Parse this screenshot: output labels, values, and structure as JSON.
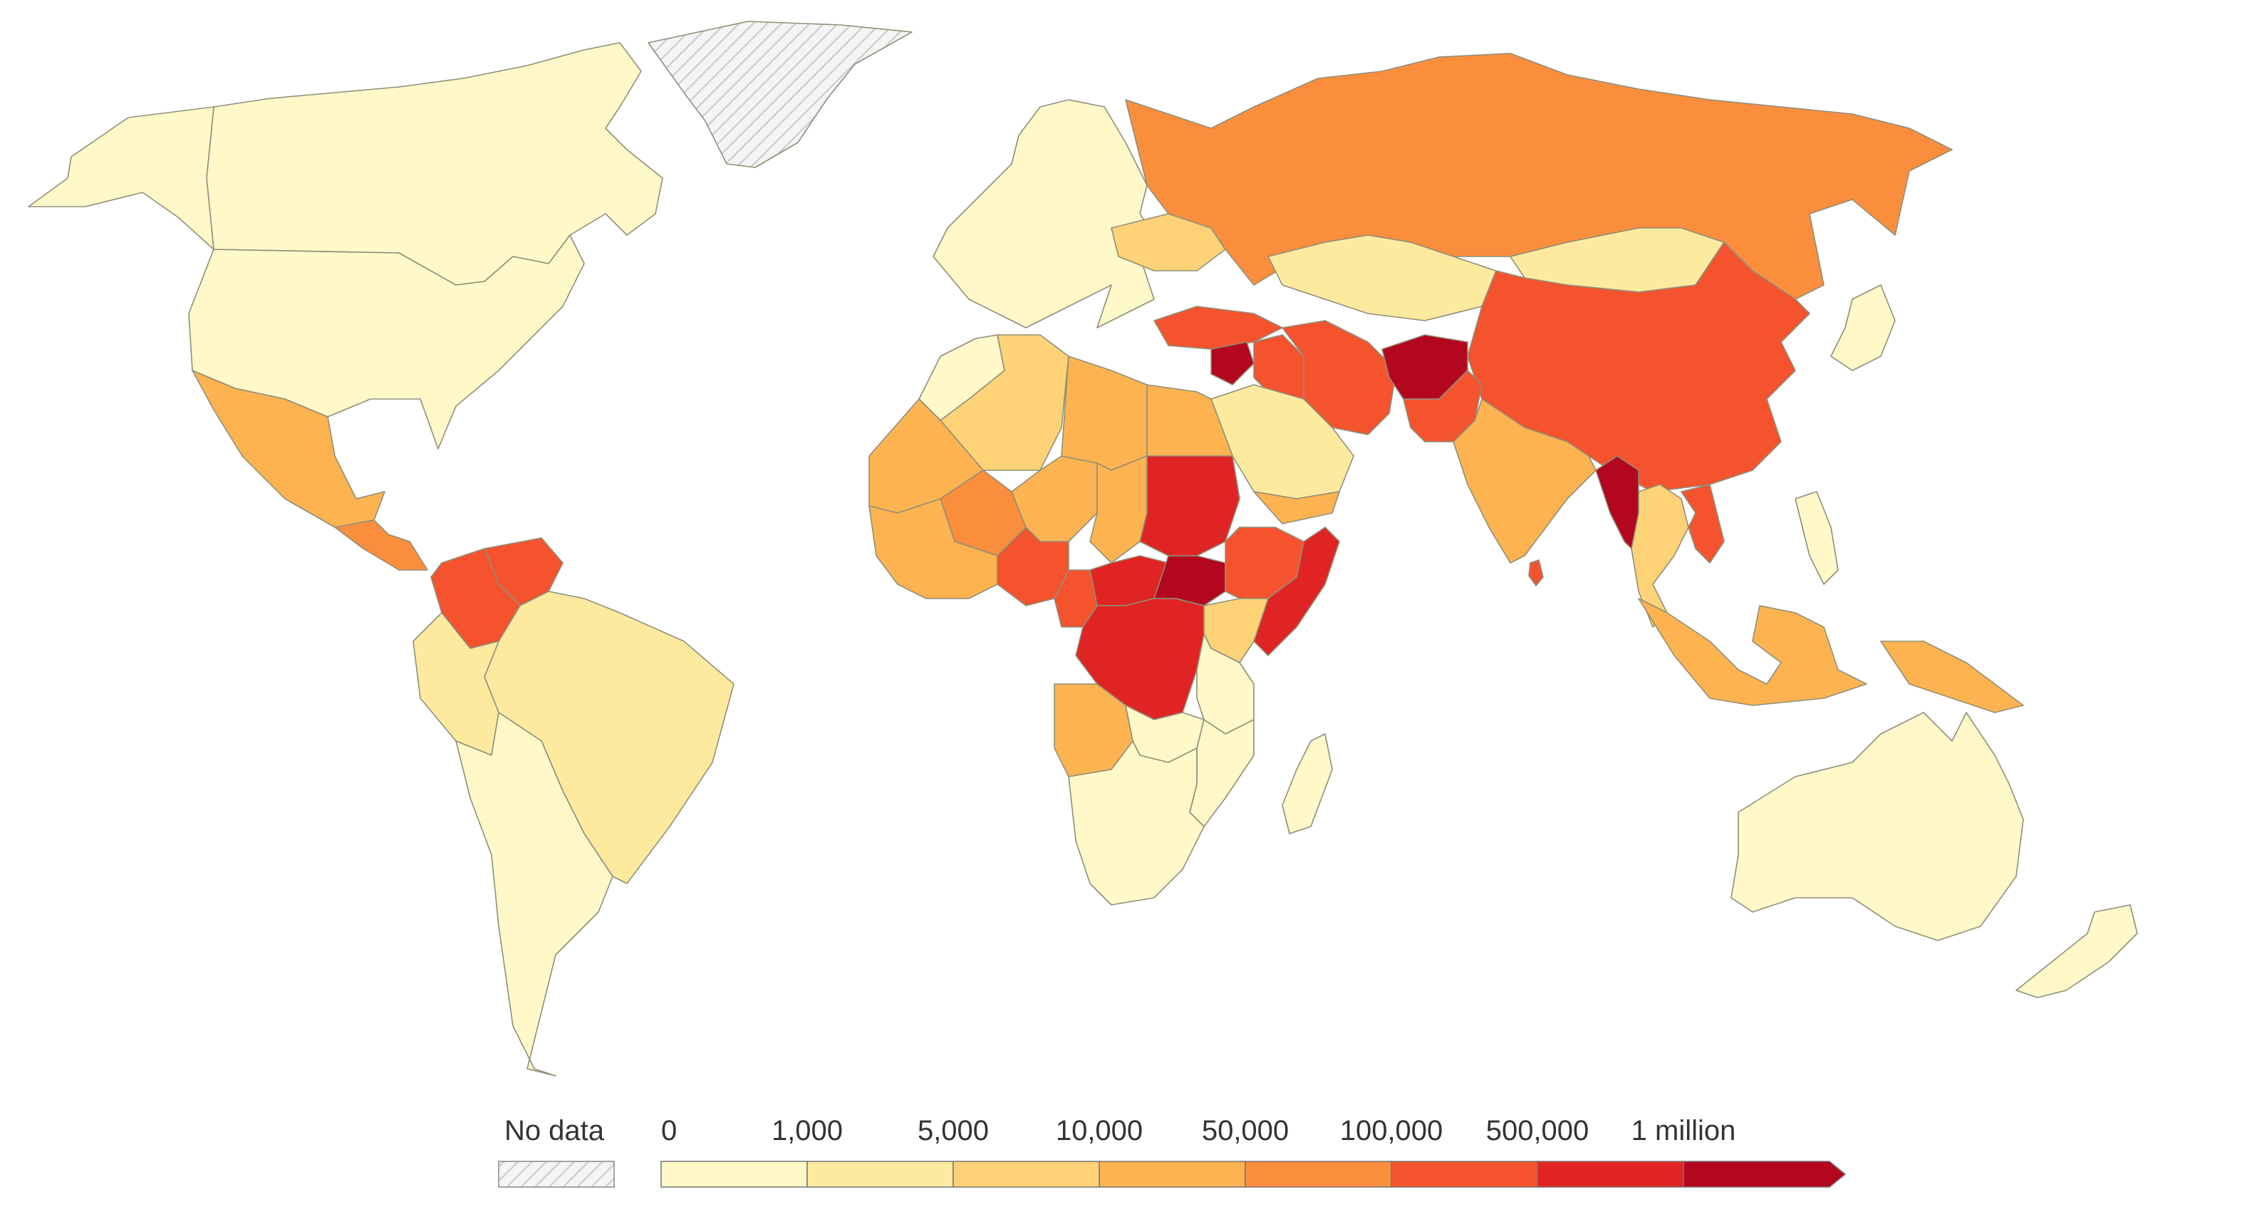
{
  "legend": {
    "no_data_label": "No data",
    "no_data_color": "#e9e9e9",
    "bins": [
      {
        "label": "0",
        "color": "#fff8c8"
      },
      {
        "label": "1,000",
        "color": "#feea9f"
      },
      {
        "label": "5,000",
        "color": "#fed276"
      },
      {
        "label": "10,000",
        "color": "#fdb350"
      },
      {
        "label": "50,000",
        "color": "#fb8e3c"
      },
      {
        "label": "100,000",
        "color": "#f4532d"
      },
      {
        "label": "500,000",
        "color": "#e02423"
      },
      {
        "label": "1 million",
        "color": "#b3061f"
      }
    ]
  },
  "regions": [
    {
      "name": "Canada",
      "color": "#fff8c8"
    },
    {
      "name": "United States",
      "color": "#fff8c8"
    },
    {
      "name": "Alaska",
      "color": "#fff8c8"
    },
    {
      "name": "Greenland",
      "color": "#e9e9e9"
    },
    {
      "name": "Mexico",
      "color": "#fdb350"
    },
    {
      "name": "Central America",
      "color": "#fb8e3c"
    },
    {
      "name": "Colombia",
      "color": "#f4532d"
    },
    {
      "name": "Venezuela",
      "color": "#f4532d"
    },
    {
      "name": "Brazil",
      "color": "#feea9f"
    },
    {
      "name": "Peru",
      "color": "#feea9f"
    },
    {
      "name": "Southern Cone",
      "color": "#fff8c8"
    },
    {
      "name": "Europe",
      "color": "#fff8c8"
    },
    {
      "name": "Ukraine",
      "color": "#fed276"
    },
    {
      "name": "Russia",
      "color": "#fb8e3c"
    },
    {
      "name": "Kazakhstan",
      "color": "#feea9f"
    },
    {
      "name": "Mongolia",
      "color": "#feea9f"
    },
    {
      "name": "China",
      "color": "#f4532d"
    },
    {
      "name": "Japan",
      "color": "#fff8c8"
    },
    {
      "name": "Turkey",
      "color": "#f4532d"
    },
    {
      "name": "Syria",
      "color": "#b3061f"
    },
    {
      "name": "Iraq",
      "color": "#f4532d"
    },
    {
      "name": "Iran",
      "color": "#f4532d"
    },
    {
      "name": "Afghanistan",
      "color": "#b3061f"
    },
    {
      "name": "Pakistan",
      "color": "#f4532d"
    },
    {
      "name": "India",
      "color": "#fdb350"
    },
    {
      "name": "Sri Lanka",
      "color": "#f4532d"
    },
    {
      "name": "Saudi Arabia",
      "color": "#feea9f"
    },
    {
      "name": "Yemen",
      "color": "#fdb350"
    },
    {
      "name": "Myanmar",
      "color": "#b3061f"
    },
    {
      "name": "Vietnam",
      "color": "#f4532d"
    },
    {
      "name": "Southeast Asia",
      "color": "#fed276"
    },
    {
      "name": "Indonesia",
      "color": "#fdb350"
    },
    {
      "name": "Philippines",
      "color": "#fff8c8"
    },
    {
      "name": "Papua New Guinea",
      "color": "#fdb350"
    },
    {
      "name": "Australia",
      "color": "#fff8c8"
    },
    {
      "name": "New Zealand",
      "color": "#fff8c8"
    },
    {
      "name": "Morocco",
      "color": "#fff8c8"
    },
    {
      "name": "Algeria",
      "color": "#fed276"
    },
    {
      "name": "Libya",
      "color": "#fdb350"
    },
    {
      "name": "Egypt",
      "color": "#fdb350"
    },
    {
      "name": "Mauritania",
      "color": "#fdb350"
    },
    {
      "name": "Mali",
      "color": "#fb8e3c"
    },
    {
      "name": "Niger",
      "color": "#fdb350"
    },
    {
      "name": "Chad",
      "color": "#fdb350"
    },
    {
      "name": "Sudan",
      "color": "#e02423"
    },
    {
      "name": "West Africa",
      "color": "#fdb350"
    },
    {
      "name": "Nigeria",
      "color": "#f4532d"
    },
    {
      "name": "Cameroon",
      "color": "#f4532d"
    },
    {
      "name": "Central African Republic",
      "color": "#e02423"
    },
    {
      "name": "South Sudan",
      "color": "#b3061f"
    },
    {
      "name": "Ethiopia",
      "color": "#f4532d"
    },
    {
      "name": "Somalia",
      "color": "#e02423"
    },
    {
      "name": "DR Congo",
      "color": "#e02423"
    },
    {
      "name": "Kenya",
      "color": "#fed276"
    },
    {
      "name": "Tanzania",
      "color": "#fff8c8"
    },
    {
      "name": "Angola",
      "color": "#fdb350"
    },
    {
      "name": "Zambia",
      "color": "#fff8c8"
    },
    {
      "name": "Mozambique",
      "color": "#fff8c8"
    },
    {
      "name": "Southern Africa",
      "color": "#fff8c8"
    },
    {
      "name": "Madagascar",
      "color": "#fff8c8"
    }
  ]
}
